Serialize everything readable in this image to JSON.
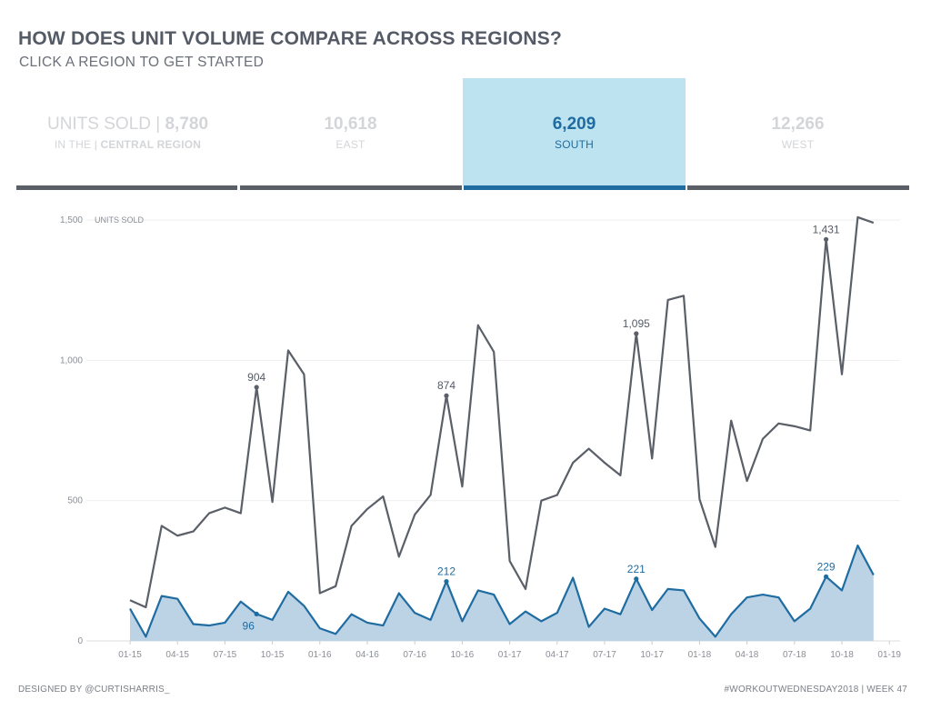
{
  "header": {
    "title": "HOW DOES UNIT VOLUME COMPARE ACROSS REGIONS?",
    "subtitle": "CLICK A REGION TO GET STARTED"
  },
  "tabs": [
    {
      "value": "8,780",
      "label": "CENTRAL REGION",
      "prefix": "UNITS SOLD | ",
      "label_prefix": "IN THE | ",
      "active": false
    },
    {
      "value": "10,618",
      "label": "EAST",
      "active": false
    },
    {
      "value": "6,209",
      "label": "SOUTH",
      "active": true
    },
    {
      "value": "12,266",
      "label": "WEST",
      "active": false
    }
  ],
  "colors": {
    "all_regions": "#5a5f68",
    "selected": "#1f6ca1",
    "selected_fill": "#bcd3e6",
    "tab_active_bg": "#bde3f1"
  },
  "chart_data": {
    "type": "line",
    "ylabel": "UNITS SOLD",
    "ylim": [
      0,
      1500
    ],
    "yticks": [
      "0",
      "500",
      "1,000",
      "1,500"
    ],
    "xticks": [
      "01-15",
      "04-15",
      "07-15",
      "10-15",
      "01-16",
      "04-16",
      "07-16",
      "10-16",
      "01-17",
      "04-17",
      "07-17",
      "10-17",
      "01-18",
      "04-18",
      "07-18",
      "10-18",
      "01-19"
    ],
    "grid": true,
    "x": [
      "01-15",
      "02-15",
      "03-15",
      "04-15",
      "05-15",
      "06-15",
      "07-15",
      "08-15",
      "09-15",
      "10-15",
      "11-15",
      "12-15",
      "01-16",
      "02-16",
      "03-16",
      "04-16",
      "05-16",
      "06-16",
      "07-16",
      "08-16",
      "09-16",
      "10-16",
      "11-16",
      "12-16",
      "01-17",
      "02-17",
      "03-17",
      "04-17",
      "05-17",
      "06-17",
      "07-17",
      "08-17",
      "09-17",
      "10-17",
      "11-17",
      "12-17",
      "01-18",
      "02-18",
      "03-18",
      "04-18",
      "05-18",
      "06-18",
      "07-18",
      "08-18",
      "09-18",
      "10-18",
      "11-18",
      "12-18"
    ],
    "series": [
      {
        "name": "",
        "type": "line",
        "values": [
          145,
          120,
          410,
          375,
          390,
          455,
          475,
          455,
          904,
          495,
          1035,
          950,
          170,
          195,
          410,
          470,
          515,
          300,
          450,
          520,
          874,
          550,
          1125,
          1030,
          285,
          185,
          500,
          520,
          635,
          685,
          635,
          590,
          1095,
          650,
          1215,
          1230,
          505,
          335,
          785,
          570,
          720,
          775,
          765,
          750,
          1431,
          950,
          1510,
          1490
        ],
        "labels": {
          "8": "904",
          "20": "874",
          "32": "1,095",
          "44": "1,431"
        }
      },
      {
        "name": "",
        "type": "area",
        "values": [
          115,
          15,
          160,
          150,
          60,
          55,
          65,
          140,
          96,
          75,
          175,
          125,
          45,
          25,
          95,
          65,
          55,
          170,
          100,
          75,
          212,
          70,
          180,
          165,
          60,
          105,
          70,
          100,
          225,
          50,
          115,
          95,
          221,
          110,
          185,
          180,
          80,
          15,
          95,
          155,
          165,
          155,
          70,
          115,
          229,
          180,
          340,
          235
        ],
        "labels": {
          "8": "96",
          "20": "212",
          "32": "221",
          "44": "229"
        }
      }
    ]
  },
  "footer": {
    "left": "DESIGNED BY @CURTISHARRIS_",
    "right": "#WORKOUTWEDNESDAY2018 | WEEK 47"
  }
}
